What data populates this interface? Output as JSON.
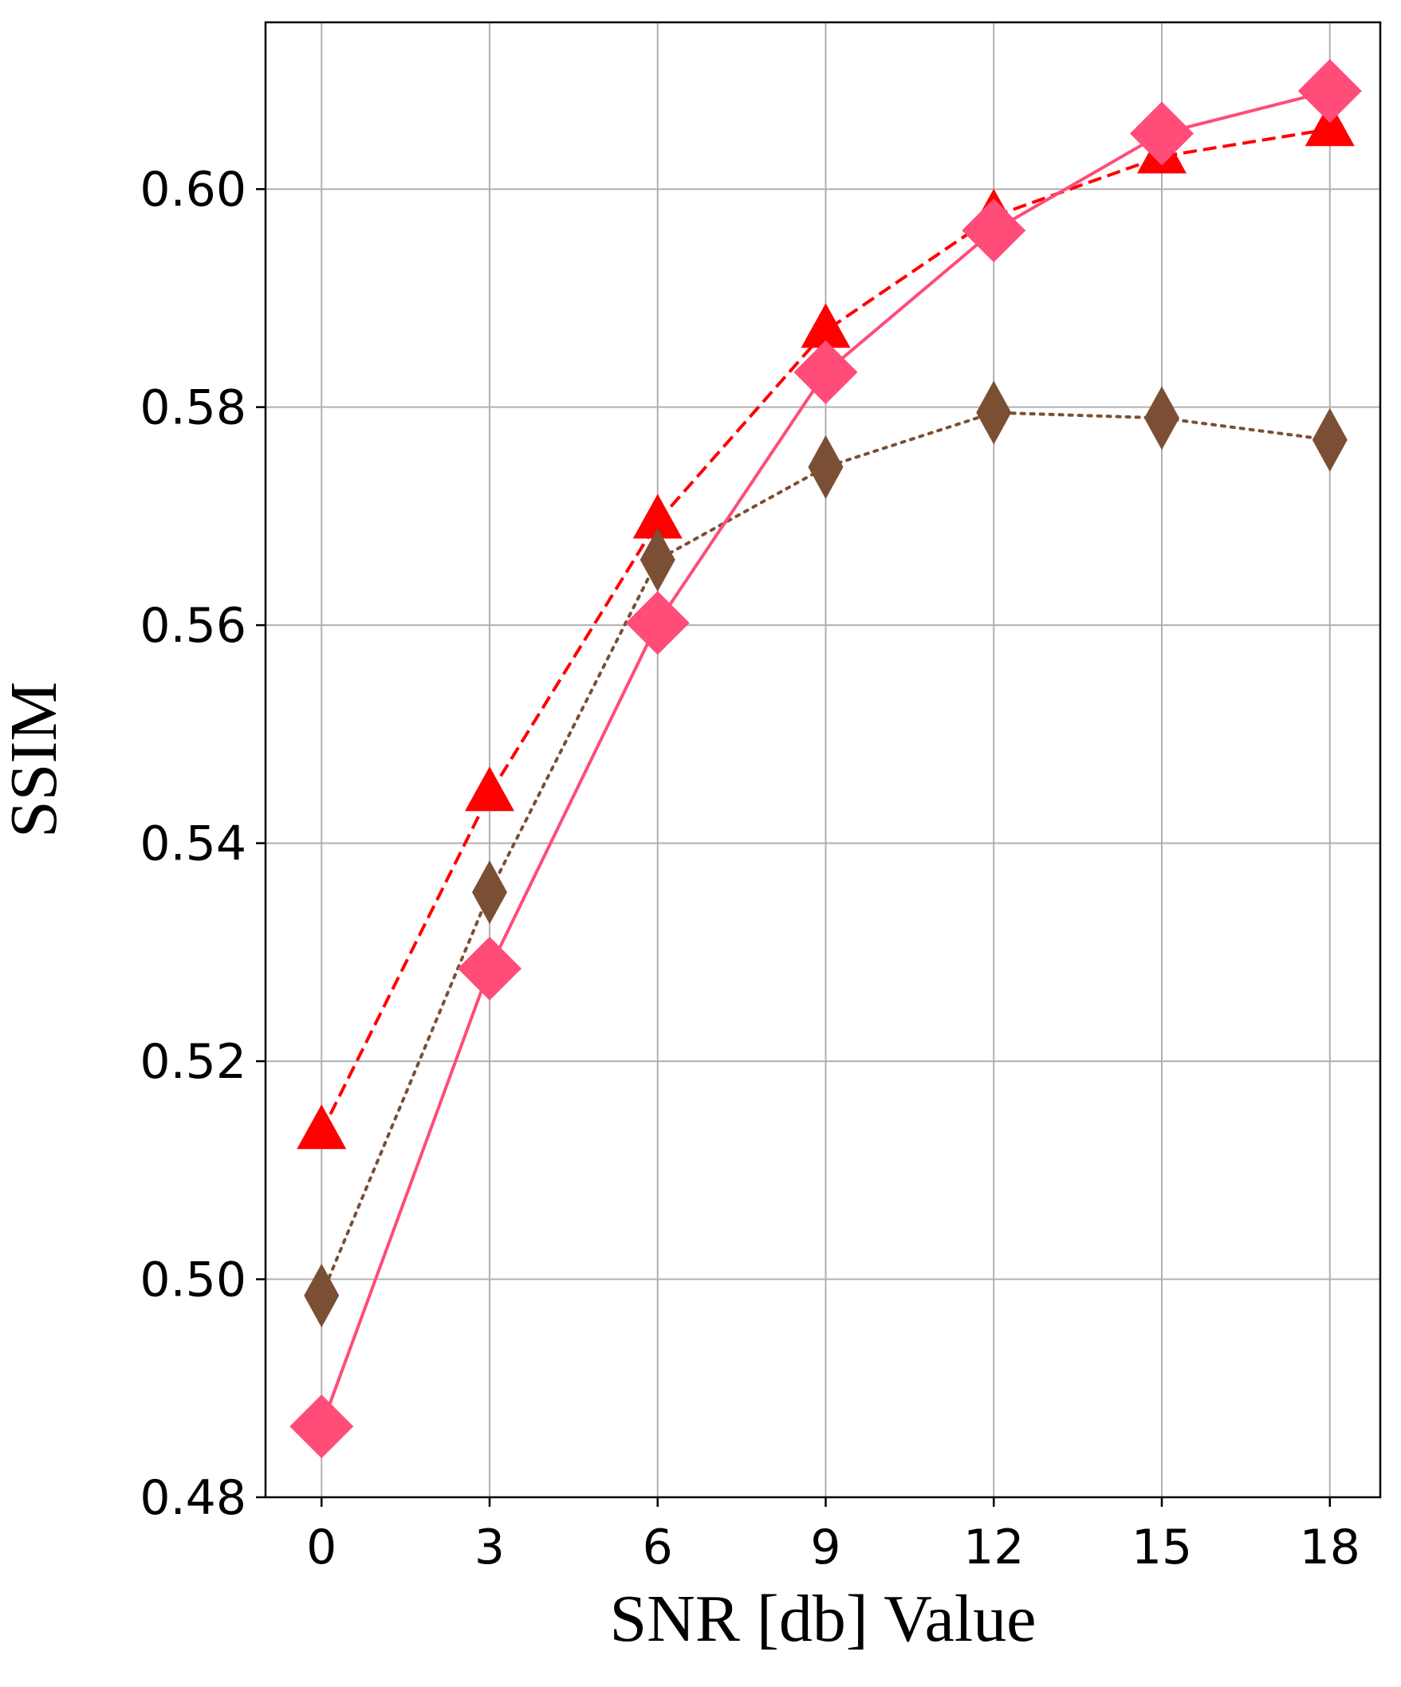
{
  "chart_data": {
    "type": "line",
    "title": "",
    "xlabel": "SNR [db] Value",
    "ylabel": "SSIM",
    "xlim": [
      -1.0,
      18.9
    ],
    "ylim": [
      0.48,
      0.6153
    ],
    "grid": true,
    "legend": "none",
    "x": [
      0,
      3,
      6,
      9,
      12,
      15,
      18
    ],
    "xticks": [
      "0",
      "3",
      "6",
      "9",
      "12",
      "15",
      "18"
    ],
    "yticks": [
      "0.48",
      "0.50",
      "0.52",
      "0.54",
      "0.56",
      "0.58",
      "0.60"
    ],
    "series": [
      {
        "values": [
          0.5135,
          0.5445,
          0.5695,
          0.587,
          0.5975,
          0.603,
          0.6055
        ],
        "color": "#ff0000",
        "marker": "triangle",
        "linestyle": "dashed"
      },
      {
        "values": [
          0.4985,
          0.5355,
          0.566,
          0.5745,
          0.5795,
          0.579,
          0.577
        ],
        "color": "#7b4f34",
        "marker": "thin-diamond",
        "linestyle": "dotted"
      },
      {
        "values": [
          0.4865,
          0.5285,
          0.5602,
          0.5832,
          0.5962,
          0.6051,
          0.609
        ],
        "color": "#ff4c78",
        "marker": "diamond",
        "linestyle": "solid"
      }
    ]
  }
}
